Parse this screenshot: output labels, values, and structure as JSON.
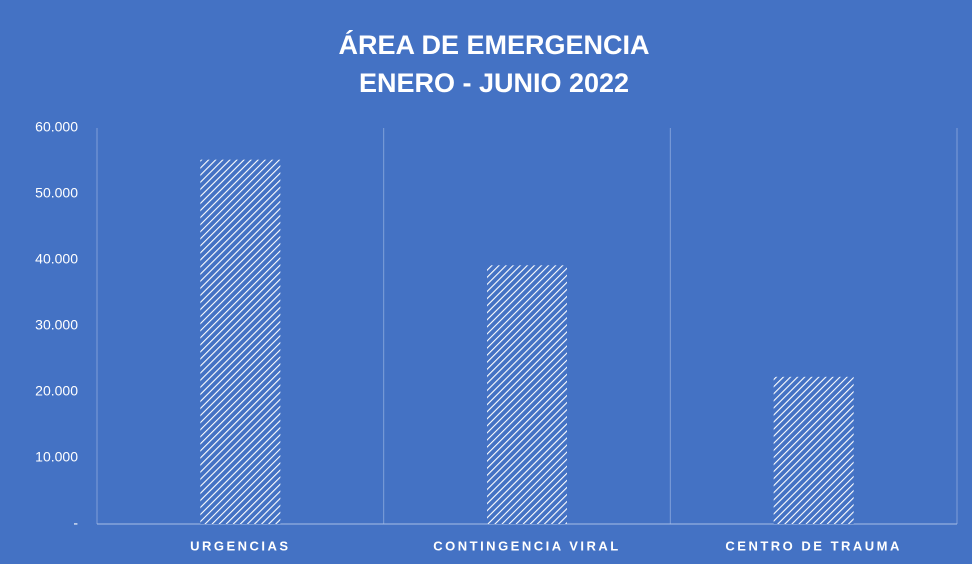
{
  "chart_data": {
    "type": "bar",
    "title": "ÁREA DE EMERGENCIA",
    "subtitle": "ENERO - JUNIO 2022",
    "categories": [
      "URGENCIAS",
      "CONTINGENCIA VIRAL",
      "CENTRO DE TRAUMA"
    ],
    "values": [
      55200,
      39200,
      22300
    ],
    "color": "#ffffff",
    "ylim": [
      0,
      60000
    ],
    "yticks": [
      {
        "value": 0,
        "label": "-"
      },
      {
        "value": 10000,
        "label": "10.000"
      },
      {
        "value": 20000,
        "label": "20.000"
      },
      {
        "value": 30000,
        "label": "30.000"
      },
      {
        "value": 40000,
        "label": "40.000"
      },
      {
        "value": 50000,
        "label": "50.000"
      },
      {
        "value": 60000,
        "label": "60.000"
      }
    ],
    "grid": false
  }
}
